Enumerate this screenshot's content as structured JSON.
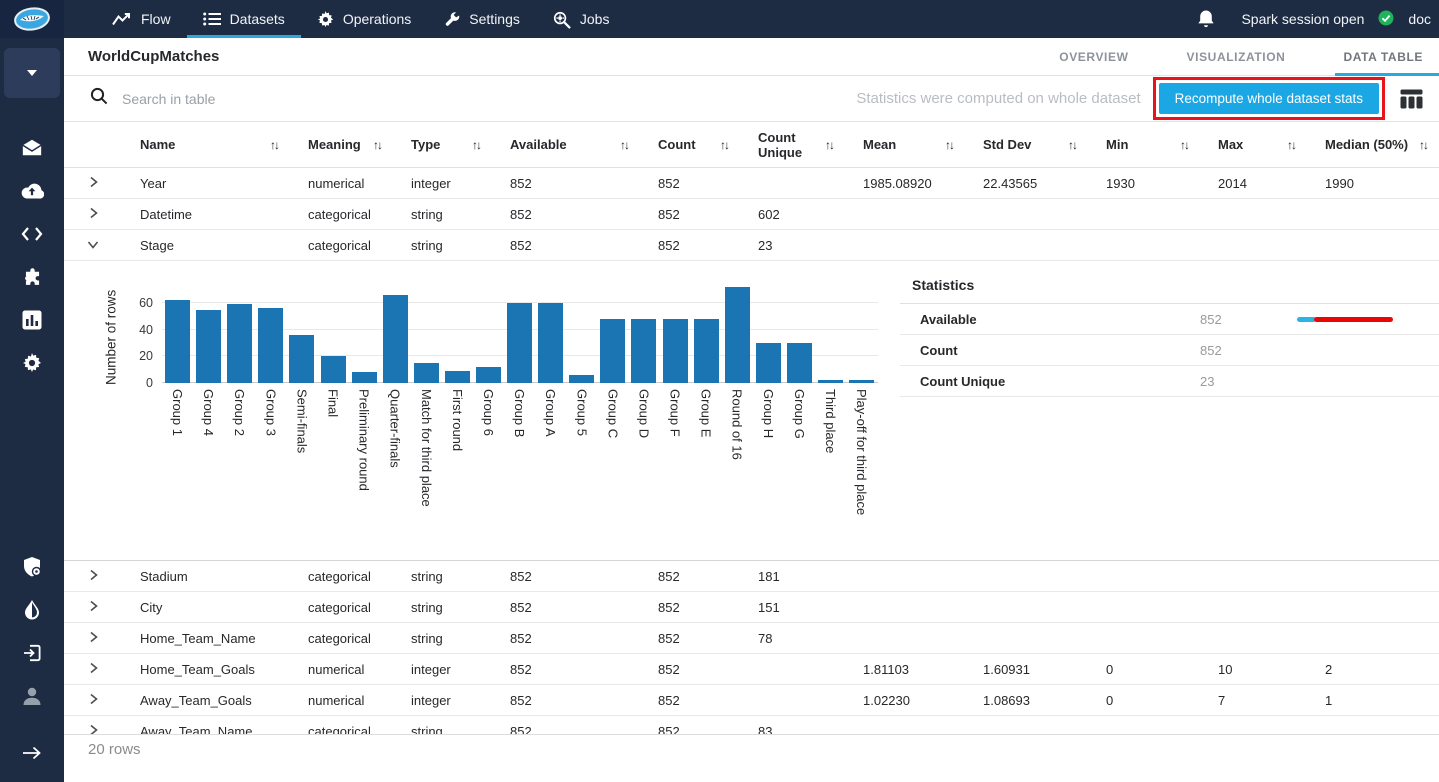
{
  "topnav": {
    "items": [
      {
        "label": "Flow",
        "icon": "flow-icon",
        "active": false
      },
      {
        "label": "Datasets",
        "icon": "datasets-icon",
        "active": true
      },
      {
        "label": "Operations",
        "icon": "gear-icon",
        "active": false
      },
      {
        "label": "Settings",
        "icon": "wrench-icon",
        "active": false
      },
      {
        "label": "Jobs",
        "icon": "jobs-magnifier-icon",
        "active": false
      }
    ],
    "session_status": "Spark session open",
    "user": "doc"
  },
  "header": {
    "title": "WorldCupMatches",
    "tabs": [
      {
        "label": "OVERVIEW",
        "active": false
      },
      {
        "label": "VISUALIZATION",
        "active": false
      },
      {
        "label": "DATA TABLE",
        "active": true
      }
    ]
  },
  "toolbar": {
    "search_placeholder": "Search in table",
    "status_message": "Statistics were computed on whole dataset",
    "recompute_button": "Recompute whole dataset stats"
  },
  "icons": {
    "sort": "↑↓",
    "caret": "▾"
  },
  "table": {
    "columns": [
      "Name",
      "Meaning",
      "Type",
      "Available",
      "Count",
      "Count Unique",
      "Mean",
      "Std Dev",
      "Min",
      "Max",
      "Median (50%)"
    ],
    "rows": [
      {
        "name": "Year",
        "meaning": "numerical",
        "type": "integer",
        "available": "852",
        "count": "852",
        "count_unique": "",
        "mean": "1985.08920",
        "std_dev": "22.43565",
        "min": "1930",
        "max": "2014",
        "median": "1990",
        "expanded": false
      },
      {
        "name": "Datetime",
        "meaning": "categorical",
        "type": "string",
        "available": "852",
        "count": "852",
        "count_unique": "602",
        "mean": "",
        "std_dev": "",
        "min": "",
        "max": "",
        "median": "",
        "expanded": false
      },
      {
        "name": "Stage",
        "meaning": "categorical",
        "type": "string",
        "available": "852",
        "count": "852",
        "count_unique": "23",
        "mean": "",
        "std_dev": "",
        "min": "",
        "max": "",
        "median": "",
        "expanded": true
      },
      {
        "name": "Stadium",
        "meaning": "categorical",
        "type": "string",
        "available": "852",
        "count": "852",
        "count_unique": "181",
        "mean": "",
        "std_dev": "",
        "min": "",
        "max": "",
        "median": "",
        "expanded": false
      },
      {
        "name": "City",
        "meaning": "categorical",
        "type": "string",
        "available": "852",
        "count": "852",
        "count_unique": "151",
        "mean": "",
        "std_dev": "",
        "min": "",
        "max": "",
        "median": "",
        "expanded": false
      },
      {
        "name": "Home_Team_Name",
        "meaning": "categorical",
        "type": "string",
        "available": "852",
        "count": "852",
        "count_unique": "78",
        "mean": "",
        "std_dev": "",
        "min": "",
        "max": "",
        "median": "",
        "expanded": false
      },
      {
        "name": "Home_Team_Goals",
        "meaning": "numerical",
        "type": "integer",
        "available": "852",
        "count": "852",
        "count_unique": "",
        "mean": "1.81103",
        "std_dev": "1.60931",
        "min": "0",
        "max": "10",
        "median": "2",
        "expanded": false
      },
      {
        "name": "Away_Team_Goals",
        "meaning": "numerical",
        "type": "integer",
        "available": "852",
        "count": "852",
        "count_unique": "",
        "mean": "1.02230",
        "std_dev": "1.08693",
        "min": "0",
        "max": "7",
        "median": "1",
        "expanded": false
      },
      {
        "name": "Away_Team_Name",
        "meaning": "categorical",
        "type": "string",
        "available": "852",
        "count": "852",
        "count_unique": "83",
        "mean": "",
        "std_dev": "",
        "min": "",
        "max": "",
        "median": "",
        "expanded": false
      }
    ],
    "footer": "20 rows"
  },
  "chart_data": {
    "type": "bar",
    "title": "",
    "xlabel": "",
    "ylabel": "Number of rows",
    "categories": [
      "Group 1",
      "Group 4",
      "Group 2",
      "Group 3",
      "Semi-finals",
      "Final",
      "Preliminary round",
      "Quarter-finals",
      "Match for third place",
      "First round",
      "Group 6",
      "Group B",
      "Group A",
      "Group 5",
      "Group C",
      "Group D",
      "Group F",
      "Group E",
      "Round of 16",
      "Group H",
      "Group G",
      "Third place",
      "Play-off for third place"
    ],
    "values": [
      62,
      55,
      59,
      56,
      36,
      20,
      8,
      66,
      15,
      9,
      12,
      60,
      60,
      6,
      48,
      48,
      48,
      48,
      72,
      30,
      30,
      2,
      2
    ],
    "ylim": [
      0,
      75
    ],
    "yticks": [
      0,
      20,
      40,
      60
    ],
    "grid": true,
    "bar_color": "#1a75b2"
  },
  "stage_stats": {
    "title": "Statistics",
    "rows": [
      {
        "label": "Available",
        "value": "852",
        "has_bar": true
      },
      {
        "label": "Count",
        "value": "852",
        "has_bar": false
      },
      {
        "label": "Count Unique",
        "value": "23",
        "has_bar": false
      }
    ],
    "bar_colors": {
      "blue": "#29b3ea",
      "red": "#ea0606"
    }
  },
  "colors": {
    "nav_background": "#1d2b43",
    "accent_blue": "#2aa9e1",
    "button_blue": "#1ba6e4",
    "annotation_red": "#e8131b",
    "chart_bar_blue": "#1a75b2",
    "status_green": "#1fb35b"
  }
}
